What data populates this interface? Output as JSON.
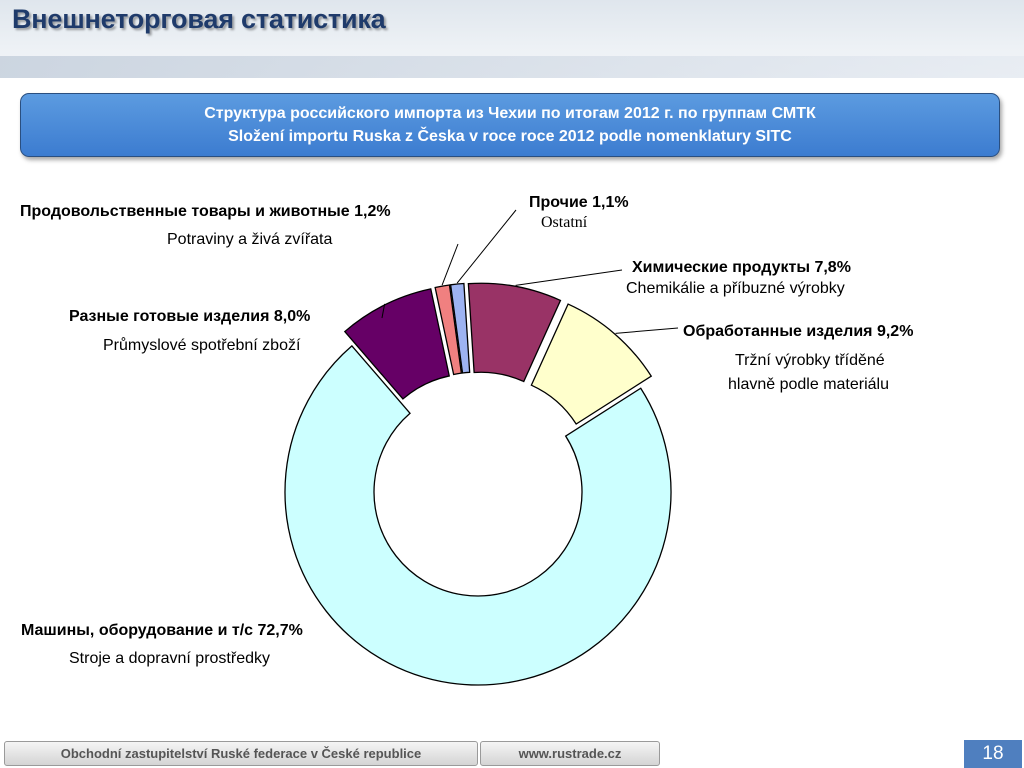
{
  "slide": {
    "title": "Внешнеторговая статистика",
    "banner_line1": "Структура российского импорта из Чехии по итогам 2012 г. по группам СМТК",
    "banner_line2": "Složení importu Ruska z Česka v roce roce 2012 podle nomenklatury SITC"
  },
  "chart_data": {
    "type": "pie",
    "title": "",
    "slices": [
      {
        "label_ru": "Продовольственные товары и животные 1,2%",
        "label_cz": "Potraviny a živá zvířata",
        "value": 1.2,
        "color": "#f08080"
      },
      {
        "label_ru": "Прочие 1,1%",
        "label_cz": "Ostatní",
        "value": 1.1,
        "color": "#9db3f2"
      },
      {
        "label_ru": "Химические продукты 7,8%",
        "label_cz": "Chemikálie a příbuzné výrobky",
        "value": 7.8,
        "color": "#993366"
      },
      {
        "label_ru": "Обработанные изделия 9,2%",
        "label_cz": "Tržní výrobky tříděné hlavně podle materiálu",
        "label_cz_line1": "Tržní výrobky tříděné",
        "label_cz_line2": "hlavně podle materiálu",
        "value": 9.2,
        "color": "#ffffcc"
      },
      {
        "label_ru": "Машины, оборудование и т/с 72,7%",
        "label_cz": "Stroje a dopravní prostředky",
        "value": 72.7,
        "color": "#ccffff"
      },
      {
        "label_ru": "Разные готовые изделия 8,0%",
        "label_cz": "Průmyslové spotřební zboží",
        "value": 8.0,
        "color": "#660066"
      }
    ]
  },
  "footer": {
    "org": "Obchodní zastupitelství Ruské federace v České republice",
    "url": "www.rustrade.cz",
    "page": "18"
  }
}
